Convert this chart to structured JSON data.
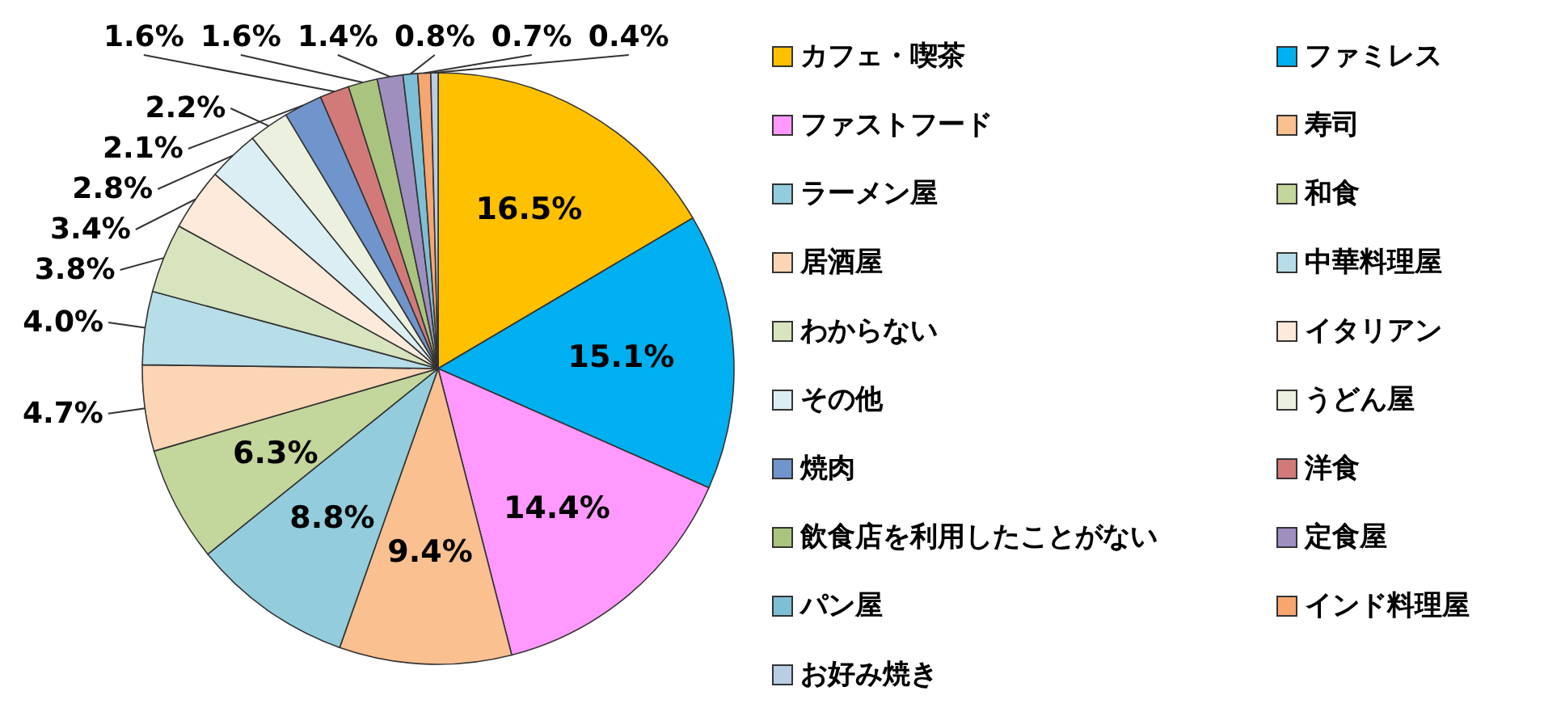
{
  "chart_data": {
    "type": "pie",
    "categories": [
      "カフェ・喫茶",
      "ファミレス",
      "ファストフード",
      "寿司",
      "ラーメン屋",
      "和食",
      "居酒屋",
      "中華料理屋",
      "わからない",
      "イタリアン",
      "その他",
      "うどん屋",
      "焼肉",
      "洋食",
      "飲食店を利用したことがない",
      "定食屋",
      "パン屋",
      "インド料理屋",
      "お好み焼き"
    ],
    "values": [
      16.5,
      15.1,
      14.4,
      9.4,
      8.8,
      6.3,
      4.7,
      4.0,
      3.8,
      3.4,
      2.8,
      2.2,
      2.1,
      1.6,
      1.6,
      1.4,
      0.8,
      0.7,
      0.4
    ],
    "value_labels": [
      "16.5%",
      "15.1%",
      "14.4%",
      "9.4%",
      "8.8%",
      "6.3%",
      "4.7%",
      "4.0%",
      "3.8%",
      "3.4%",
      "2.8%",
      "2.2%",
      "2.1%",
      "1.6%",
      "1.6%",
      "1.4%",
      "0.8%",
      "0.7%",
      "0.4%"
    ],
    "colors": [
      "#ffc000",
      "#00b0f0",
      "#ff99ff",
      "#fac090",
      "#93cddd",
      "#c3d69b",
      "#fcd5b5",
      "#b7dee8",
      "#d7e4bd",
      "#fdeada",
      "#dbeef4",
      "#ebf1de",
      "#7094cc",
      "#d27a7a",
      "#a9c47f",
      "#9f8fbf",
      "#7fbfd5",
      "#f7a66f",
      "#b9cde5"
    ],
    "legend": "right"
  }
}
